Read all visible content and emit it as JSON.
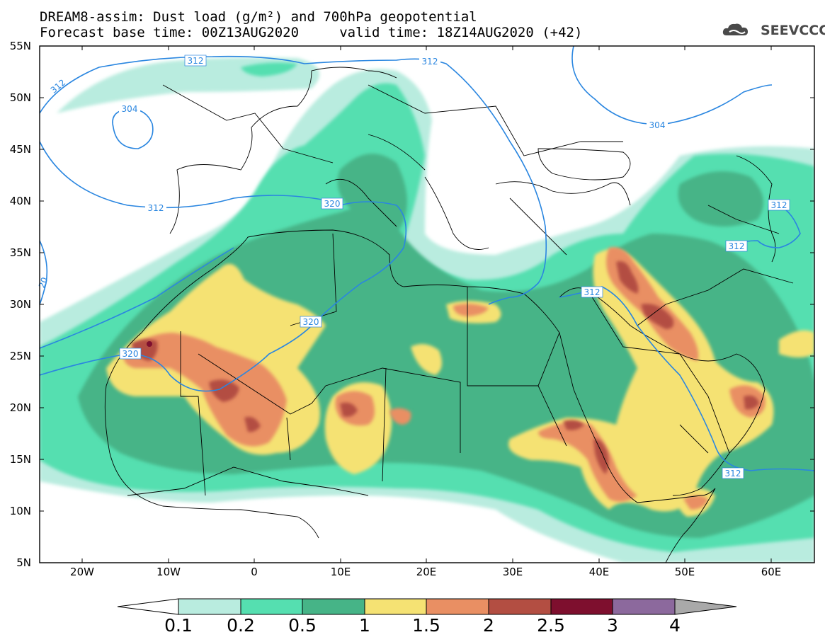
{
  "title_line1": "DREAM8-assim: Dust load (g/m²) and 700hPa geopotential",
  "title_line2": "Forecast base time: 00Z13AUG2020     valid time: 18Z14AUG2020 (+42)",
  "logo": {
    "text": "SEEVCCC",
    "icon": "cloud-logo-icon"
  },
  "map": {
    "lat_labels": [
      "55N",
      "50N",
      "45N",
      "40N",
      "35N",
      "30N",
      "25N",
      "20N",
      "15N",
      "10N",
      "5N"
    ],
    "lon_labels": [
      "20W",
      "10W",
      "0",
      "10E",
      "20E",
      "30E",
      "40E",
      "50E",
      "60E"
    ],
    "contour_labels": [
      {
        "text": "312",
        "boxed": true
      },
      {
        "text": "312",
        "boxed": false
      },
      {
        "text": "304",
        "boxed": false
      },
      {
        "text": "312",
        "boxed": false
      },
      {
        "text": "312",
        "boxed": false
      },
      {
        "text": "304",
        "boxed": false
      },
      {
        "text": "312",
        "boxed": true
      },
      {
        "text": "312",
        "boxed": true
      },
      {
        "text": "320",
        "boxed": true
      },
      {
        "text": "320",
        "boxed": true
      },
      {
        "text": "320",
        "boxed": true
      },
      {
        "text": "312",
        "boxed": true
      },
      {
        "text": "312",
        "boxed": true
      },
      {
        "text": "20",
        "boxed": false
      }
    ]
  },
  "colorbar": {
    "labels": [
      "0.1",
      "0.2",
      "0.5",
      "1",
      "1.5",
      "2",
      "2.5",
      "3",
      "4"
    ],
    "colors": [
      "#b9ecdf",
      "#55dfb0",
      "#46b487",
      "#f5e273",
      "#e98f63",
      "#b34e42",
      "#7e0f2e",
      "#8c699d"
    ],
    "over_color": "#a9a9a9",
    "under_color": "#ffffff"
  },
  "colors": {
    "level1": "#b9ecdf",
    "level2": "#55dfb0",
    "level3": "#46b487",
    "level4": "#f5e273",
    "level5": "#e98f63",
    "level6": "#b34e42",
    "level7": "#7e0f2e",
    "contour": "#2a86e0",
    "boundary": "#000000"
  }
}
